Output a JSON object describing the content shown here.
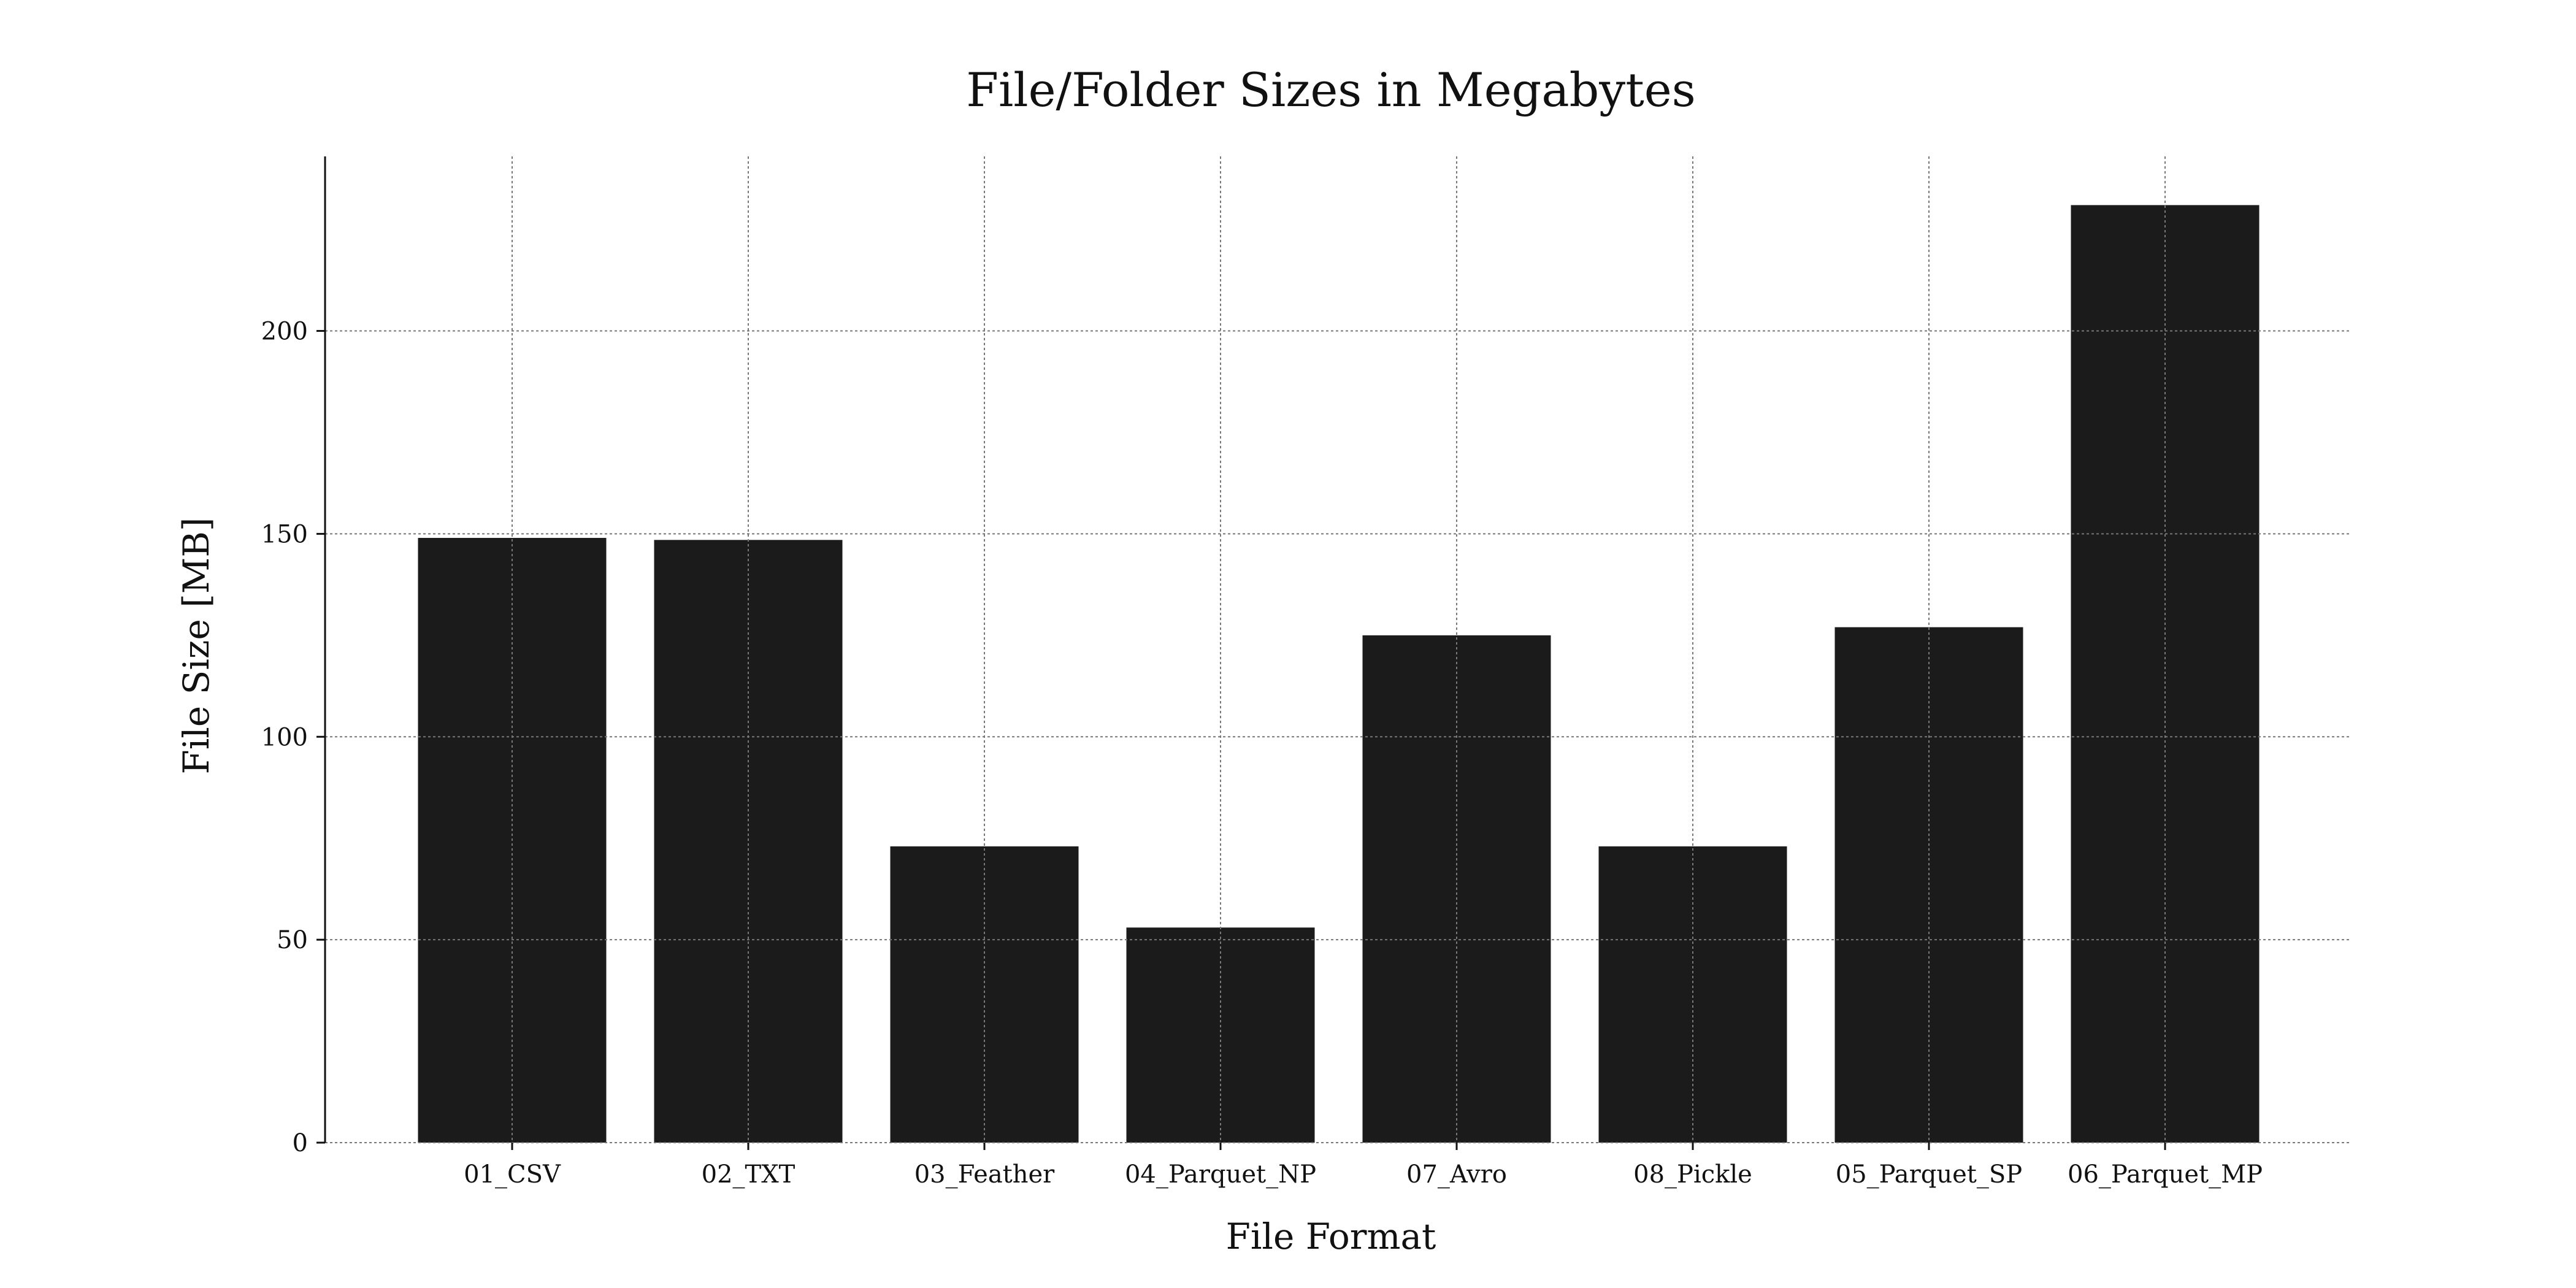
{
  "chart_data": {
    "type": "bar",
    "title": "File/Folder Sizes in Megabytes",
    "xlabel": "File Format",
    "ylabel": "File Size  [MB]",
    "categories": [
      "01_CSV",
      "02_TXT",
      "03_Feather",
      "04_Parquet_NP",
      "07_Avro",
      "08_Pickle",
      "05_Parquet_SP",
      "06_Parquet_MP"
    ],
    "values": [
      149,
      148.5,
      73,
      53,
      125,
      73,
      127,
      231
    ],
    "ylim": [
      0,
      243
    ],
    "yticks": [
      0,
      50,
      100,
      150,
      200
    ],
    "grid": true,
    "bar_color": "#1b1b1b"
  }
}
